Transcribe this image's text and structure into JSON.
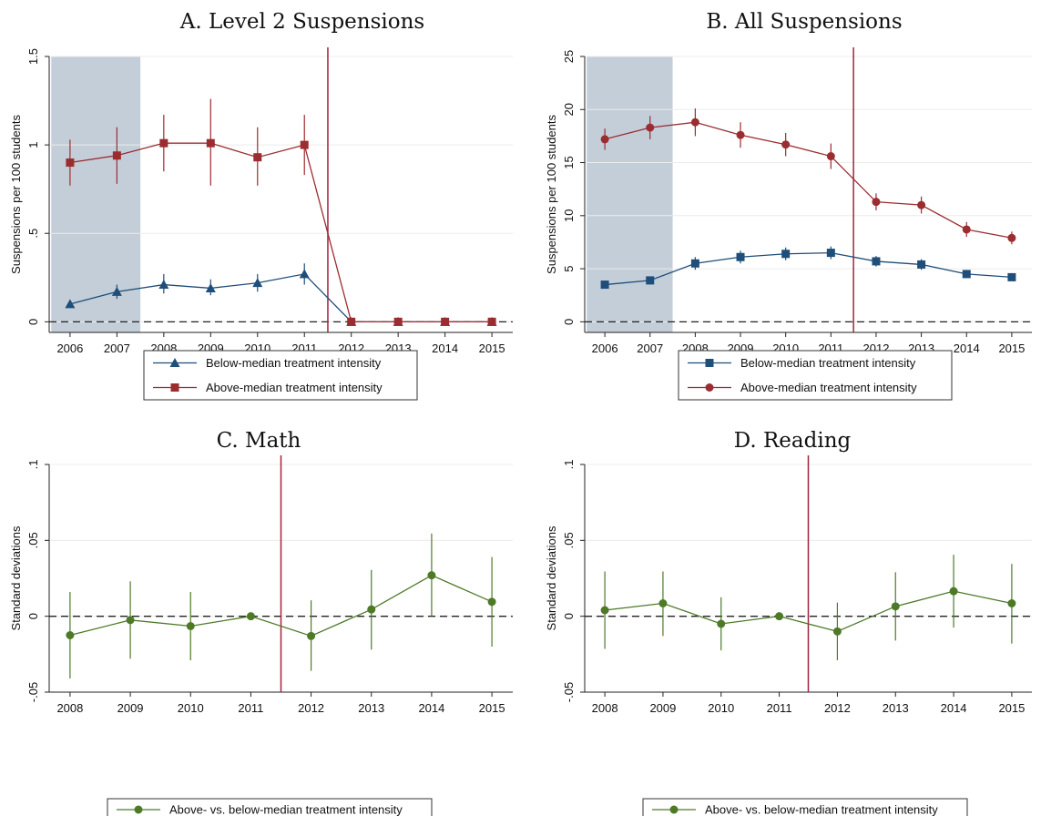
{
  "chart_data": [
    {
      "type": "line",
      "title": "A. Level 2 Suspensions",
      "xlabel": "",
      "ylabel": "Suspensions per 100 students",
      "x": [
        2006,
        2007,
        2008,
        2009,
        2010,
        2011,
        2012,
        2013,
        2014,
        2015
      ],
      "xticks": [
        "2006",
        "2007",
        "2008",
        "2009",
        "2010",
        "2011",
        "2012",
        "2013",
        "2014",
        "2015"
      ],
      "ylim": [
        -0.06,
        1.5
      ],
      "yticks": [
        0,
        0.5,
        1,
        1.5
      ],
      "ytick_labels": [
        "0",
        ".5",
        "1",
        "1.5"
      ],
      "shaded_x_range": [
        2005.6,
        2007.5
      ],
      "vertical_line_x": 2011.5,
      "zero_line": 0,
      "grid": true,
      "legend_position": "bottom",
      "series": [
        {
          "name": "Below-median treatment intensity",
          "marker": "triangle",
          "color": "#1f4e79",
          "values": [
            0.1,
            0.17,
            0.21,
            0.19,
            0.22,
            0.27,
            0.0,
            0.0,
            0.0,
            0.0
          ],
          "ci_low": [
            0.09,
            0.13,
            0.16,
            0.15,
            0.17,
            0.21,
            0.0,
            -0.005,
            -0.005,
            -0.005
          ],
          "ci_high": [
            0.12,
            0.21,
            0.27,
            0.24,
            0.27,
            0.33,
            0.0,
            0.005,
            0.005,
            0.005
          ]
        },
        {
          "name": "Above-median treatment intensity",
          "marker": "square",
          "color": "#9b2d30",
          "values": [
            0.9,
            0.94,
            1.01,
            1.01,
            0.93,
            1.0,
            0.0,
            0.0,
            0.0,
            0.0
          ],
          "ci_low": [
            0.77,
            0.78,
            0.85,
            0.77,
            0.77,
            0.83,
            0.0,
            -0.005,
            -0.005,
            -0.005
          ],
          "ci_high": [
            1.03,
            1.1,
            1.17,
            1.26,
            1.1,
            1.17,
            0.0,
            0.005,
            0.005,
            0.005
          ]
        }
      ]
    },
    {
      "type": "line",
      "title": "B. All Suspensions",
      "xlabel": "",
      "ylabel": "Suspensions per 100 students",
      "x": [
        2006,
        2007,
        2008,
        2009,
        2010,
        2011,
        2012,
        2013,
        2014,
        2015
      ],
      "xticks": [
        "2006",
        "2007",
        "2008",
        "2009",
        "2010",
        "2011",
        "2012",
        "2013",
        "2014",
        "2015"
      ],
      "ylim": [
        -1,
        25
      ],
      "yticks": [
        0,
        5,
        10,
        15,
        20,
        25
      ],
      "ytick_labels": [
        "0",
        "5",
        "10",
        "15",
        "20",
        "25"
      ],
      "shaded_x_range": [
        2005.6,
        2007.5
      ],
      "vertical_line_x": 2011.5,
      "zero_line": 0,
      "grid": true,
      "legend_position": "bottom",
      "series": [
        {
          "name": "Below-median treatment intensity",
          "marker": "square",
          "color": "#1f4e79",
          "values": [
            3.5,
            3.9,
            5.5,
            6.1,
            6.4,
            6.5,
            5.7,
            5.4,
            4.5,
            4.2
          ],
          "ci_low": [
            3.3,
            3.6,
            4.9,
            5.5,
            5.8,
            5.9,
            5.2,
            4.9,
            4.2,
            3.9
          ],
          "ci_high": [
            3.7,
            4.2,
            6.1,
            6.7,
            7.0,
            7.1,
            6.2,
            5.9,
            4.8,
            4.5
          ]
        },
        {
          "name": "Above-median treatment intensity",
          "marker": "circle",
          "color": "#9b2d30",
          "values": [
            17.2,
            18.3,
            18.8,
            17.6,
            16.7,
            15.6,
            11.3,
            11.0,
            8.7,
            7.9
          ],
          "ci_low": [
            16.2,
            17.2,
            17.5,
            16.4,
            15.6,
            14.4,
            10.5,
            10.2,
            8.0,
            7.3
          ],
          "ci_high": [
            18.2,
            19.4,
            20.1,
            18.8,
            17.8,
            16.8,
            12.1,
            11.8,
            9.4,
            8.5
          ]
        }
      ]
    },
    {
      "type": "line",
      "title": "C. Math",
      "xlabel": "",
      "ylabel": "Standard deviations",
      "x": [
        2008,
        2009,
        2010,
        2011,
        2012,
        2013,
        2014,
        2015
      ],
      "xticks": [
        "2008",
        "2009",
        "2010",
        "2011",
        "2012",
        "2013",
        "2014",
        "2015"
      ],
      "ylim": [
        -0.05,
        0.1
      ],
      "yticks": [
        -0.05,
        0,
        0.05,
        0.1
      ],
      "ytick_labels": [
        "-.05",
        "0",
        ".05",
        ".1"
      ],
      "vertical_line_x": 2011.5,
      "zero_line": 0,
      "grid": true,
      "legend_position": "bottom",
      "series": [
        {
          "name": "Above- vs. below-median treatment intensity",
          "marker": "circle",
          "color": "#4e7a27",
          "values": [
            -0.0125,
            -0.0025,
            -0.0065,
            0.0,
            -0.013,
            0.0045,
            0.027,
            0.0095
          ],
          "ci_low": [
            -0.041,
            -0.028,
            -0.029,
            0.0,
            -0.036,
            -0.022,
            0.0,
            -0.02
          ],
          "ci_high": [
            0.016,
            0.023,
            0.016,
            0.0,
            0.0105,
            0.0305,
            0.0545,
            0.039
          ]
        }
      ]
    },
    {
      "type": "line",
      "title": "D. Reading",
      "xlabel": "",
      "ylabel": "Standard deviations",
      "x": [
        2008,
        2009,
        2010,
        2011,
        2012,
        2013,
        2014,
        2015
      ],
      "xticks": [
        "2008",
        "2009",
        "2010",
        "2011",
        "2012",
        "2013",
        "2014",
        "2015"
      ],
      "ylim": [
        -0.05,
        0.1
      ],
      "yticks": [
        -0.05,
        0,
        0.05,
        0.1
      ],
      "ytick_labels": [
        "-.05",
        "0",
        ".05",
        ".1"
      ],
      "vertical_line_x": 2011.5,
      "zero_line": 0,
      "grid": true,
      "legend_position": "bottom",
      "series": [
        {
          "name": "Above- vs. below-median treatment intensity",
          "marker": "circle",
          "color": "#4e7a27",
          "values": [
            0.004,
            0.0085,
            -0.005,
            0.0,
            -0.01,
            0.0065,
            0.0165,
            0.0085
          ],
          "ci_low": [
            -0.0215,
            -0.013,
            -0.0225,
            0.0,
            -0.029,
            -0.016,
            -0.0075,
            -0.018
          ],
          "ci_high": [
            0.0295,
            0.0295,
            0.0125,
            0.0,
            0.009,
            0.029,
            0.0405,
            0.0345
          ]
        }
      ]
    }
  ]
}
